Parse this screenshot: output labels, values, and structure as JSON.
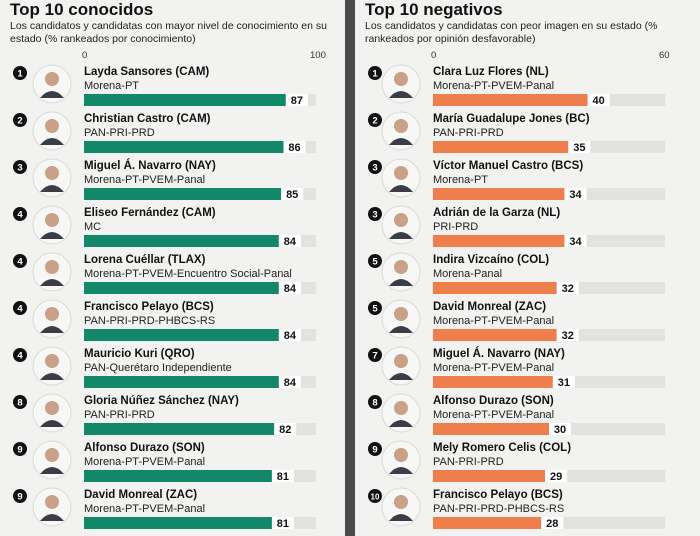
{
  "chart_data": [
    {
      "type": "bar",
      "title": "Top 10 conocidos",
      "subtitle": "Los candidatos y candidatas con mayor nivel de conocimiento en su estado (% rankeados por conocimiento)",
      "xlim": [
        0,
        100
      ],
      "axis_ticks": [
        "0",
        "100"
      ],
      "bar_color": "#12876a",
      "rows": [
        {
          "rank": "1",
          "name": "Layda Sansores (CAM)",
          "party": "Morena-PT",
          "value": 87
        },
        {
          "rank": "2",
          "name": "Christian Castro (CAM)",
          "party": "PAN-PRI-PRD",
          "value": 86
        },
        {
          "rank": "3",
          "name": "Miguel Á. Navarro (NAY)",
          "party": "Morena-PT-PVEM-Panal",
          "value": 85
        },
        {
          "rank": "4",
          "name": "Eliseo Fernández (CAM)",
          "party": "MC",
          "value": 84
        },
        {
          "rank": "4",
          "name": "Lorena Cuéllar (TLAX)",
          "party": "Morena-PT-PVEM-Encuentro Social-Panal",
          "value": 84
        },
        {
          "rank": "4",
          "name": "Francisco Pelayo (BCS)",
          "party": "PAN-PRI-PRD-PHBCS-RS",
          "value": 84
        },
        {
          "rank": "4",
          "name": "Mauricio Kuri (QRO)",
          "party": "PAN-Querétaro Independiente",
          "value": 84
        },
        {
          "rank": "8",
          "name": "Gloria Núñez Sánchez (NAY)",
          "party": "PAN-PRI-PRD",
          "value": 82
        },
        {
          "rank": "9",
          "name": "Alfonso Durazo (SON)",
          "party": "Morena-PT-PVEM-Panal",
          "value": 81
        },
        {
          "rank": "9",
          "name": "David Monreal (ZAC)",
          "party": "Morena-PT-PVEM-Panal",
          "value": 81
        }
      ]
    },
    {
      "type": "bar",
      "title": "Top 10 negativos",
      "subtitle": "Los candidatos y candidatas con peor imagen en su estado (% rankeados por opinión desfavorable)",
      "xlim": [
        0,
        60
      ],
      "axis_ticks": [
        "0",
        "60"
      ],
      "bar_color": "#ee7f4d",
      "rows": [
        {
          "rank": "1",
          "name": "Clara Luz Flores (NL)",
          "party": "Morena-PT-PVEM-Panal",
          "value": 40
        },
        {
          "rank": "2",
          "name": "María Guadalupe Jones (BC)",
          "party": "PAN-PRI-PRD",
          "value": 35
        },
        {
          "rank": "3",
          "name": "Víctor Manuel Castro (BCS)",
          "party": "Morena-PT",
          "value": 34
        },
        {
          "rank": "3",
          "name": "Adrián de la Garza (NL)",
          "party": "PRI-PRD",
          "value": 34
        },
        {
          "rank": "5",
          "name": "Indira Vizcaíno (COL)",
          "party": "Morena-Panal",
          "value": 32
        },
        {
          "rank": "5",
          "name": "David Monreal (ZAC)",
          "party": "Morena-PT-PVEM-Panal",
          "value": 32
        },
        {
          "rank": "7",
          "name": "Miguel Á. Navarro (NAY)",
          "party": "Morena-PT-PVEM-Panal",
          "value": 31
        },
        {
          "rank": "8",
          "name": "Alfonso Durazo (SON)",
          "party": "Morena-PT-PVEM-Panal",
          "value": 30
        },
        {
          "rank": "9",
          "name": "Mely Romero Celis (COL)",
          "party": "PAN-PRI-PRD",
          "value": 29
        },
        {
          "rank": "10",
          "name": "Francisco Pelayo (BCS)",
          "party": "PAN-PRI-PRD-PHBCS-RS",
          "value": 28
        }
      ]
    }
  ]
}
